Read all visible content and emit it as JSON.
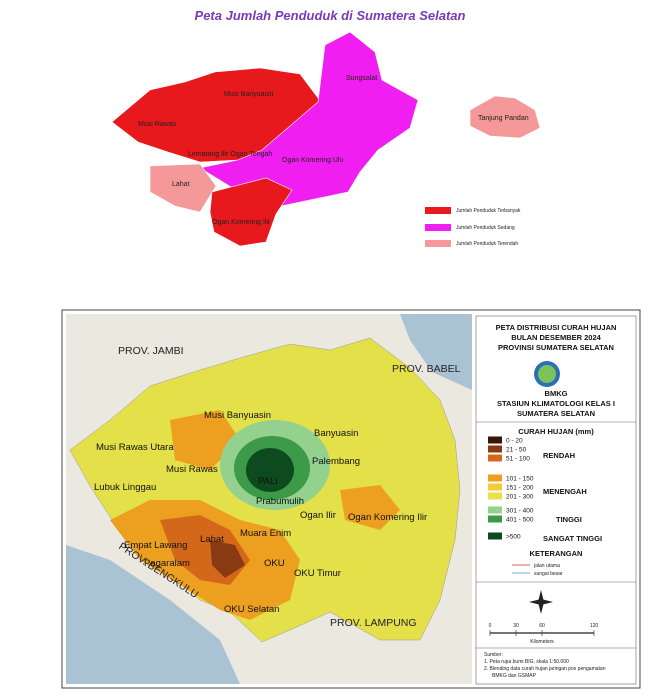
{
  "population_map": {
    "title": "Peta Jumlah Penduduk di Sumatera Selatan",
    "regions": [
      "Musi Banyuasin",
      "Musi Rawas",
      "Lematang Ilir Ogan Tengah",
      "Ogan Komering Ulu",
      "Lahat",
      "Ogan Komering Ilir",
      "Sungsalat",
      "Tanjung Pandan"
    ],
    "legend": [
      {
        "label": "Jumlah Penduduk Terbanyak",
        "color": "#e8191c"
      },
      {
        "label": "Jumlah Penduduk Sedang",
        "color": "#f01ef0"
      },
      {
        "label": "Jumlah Penduduk Terendah",
        "color": "#f4989a"
      }
    ]
  },
  "rainfall_map": {
    "title_lines": [
      "PETA DISTRIBUSI CURAH HUJAN",
      "BULAN DESEMBER 2024",
      "PROVINSI SUMATERA SELATAN"
    ],
    "agency": "BMKG",
    "station_lines": [
      "STASIUN KLIMATOLOGI  KELAS I",
      "SUMATERA SELATAN"
    ],
    "provinces": [
      "PROV. JAMBI",
      "PROV. BABEL",
      "PROV. BENGKULU",
      "PROV. LAMPUNG"
    ],
    "regions": [
      "Musi Banyuasin",
      "Banyuasin",
      "Musi Rawas Utara",
      "Musi Rawas",
      "Palembang",
      "Lubuk Linggau",
      "PALI",
      "Prabumulih",
      "Ogan Ilir",
      "Ogan Komering Ilir",
      "Muara Enim",
      "Empat Lawang",
      "Lahat",
      "Pagaralam",
      "OKU",
      "OKU Timur",
      "OKU Selatan"
    ],
    "legend_title": "CURAH HUJAN (mm)",
    "classes": [
      {
        "range": "0 - 20",
        "color": "#3a1608"
      },
      {
        "range": "21 - 50",
        "color": "#8a3a12"
      },
      {
        "range": "51 - 100",
        "color": "#d4681a"
      },
      {
        "range": "101 - 150",
        "color": "#eda020"
      },
      {
        "range": "151 - 200",
        "color": "#f3cc3a"
      },
      {
        "range": "201 - 300",
        "color": "#e6e24a"
      },
      {
        "range": "301 - 400",
        "color": "#94d08e"
      },
      {
        "range": "401 - 500",
        "color": "#3c9a48"
      },
      {
        "range": ">500",
        "color": "#0d4a1e"
      }
    ],
    "groups": [
      "RENDAH",
      "MENENGAH",
      "TINGGI",
      "SANGAT TINGGI"
    ],
    "notes_title": "KETERANGAN",
    "notes": [
      "jalan utama",
      "sungai besar"
    ],
    "scale": {
      "ticks": [
        0,
        30,
        60,
        120
      ],
      "unit": "Kilometers"
    },
    "source": [
      "Sumber:",
      "1. Peta rupa bumi BIG, skala 1:50.000",
      "2. Blending data curah hujan jaringan pos pengamatan",
      "BMKG dan GSMAP"
    ]
  }
}
